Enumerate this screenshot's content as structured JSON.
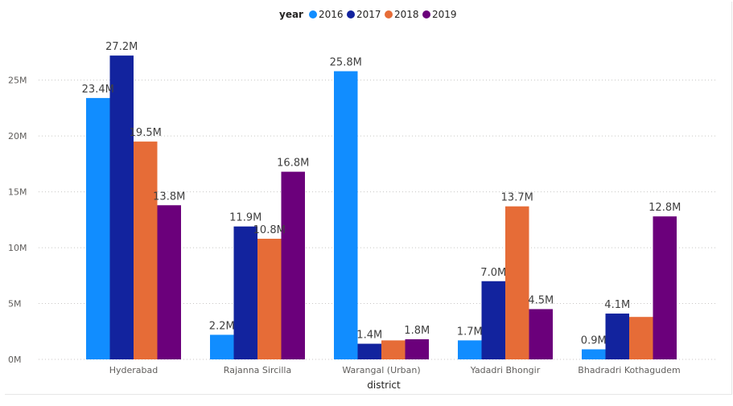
{
  "chart_data": {
    "type": "bar",
    "legend_title": "year",
    "legend_position": "top-center",
    "xlabel": "district",
    "ylabel": "",
    "ylim": [
      0,
      28000000
    ],
    "yticks": [
      {
        "value": 0,
        "label": "0M"
      },
      {
        "value": 5000000,
        "label": "5M"
      },
      {
        "value": 10000000,
        "label": "10M"
      },
      {
        "value": 15000000,
        "label": "15M"
      },
      {
        "value": 20000000,
        "label": "20M"
      },
      {
        "value": 25000000,
        "label": "25M"
      }
    ],
    "grid": true,
    "categories": [
      "Hyderabad",
      "Rajanna Sircilla",
      "Warangal (Urban)",
      "Yadadri Bhongir",
      "Bhadradri Kothagudem"
    ],
    "series": [
      {
        "name": "2016",
        "color": "#118DFF",
        "values": [
          23400000,
          2200000,
          25800000,
          1700000,
          900000
        ],
        "labels": [
          "23.4M",
          "2.2M",
          "25.8M",
          "1.7M",
          "0.9M"
        ]
      },
      {
        "name": "2017",
        "color": "#12239E",
        "values": [
          27200000,
          11900000,
          1400000,
          7000000,
          4100000
        ],
        "labels": [
          "27.2M",
          "11.9M",
          "1.4M",
          "7.0M",
          "4.1M"
        ]
      },
      {
        "name": "2018",
        "color": "#E66C37",
        "values": [
          19500000,
          10800000,
          1700000,
          13700000,
          3800000
        ],
        "labels": [
          "19.5M",
          "10.8M",
          "",
          "13.7M",
          ""
        ]
      },
      {
        "name": "2019",
        "color": "#6B007B",
        "values": [
          13800000,
          16800000,
          1800000,
          4500000,
          12800000
        ],
        "labels": [
          "13.8M",
          "16.8M",
          "1.8M",
          "4.5M",
          "12.8M"
        ]
      }
    ]
  }
}
